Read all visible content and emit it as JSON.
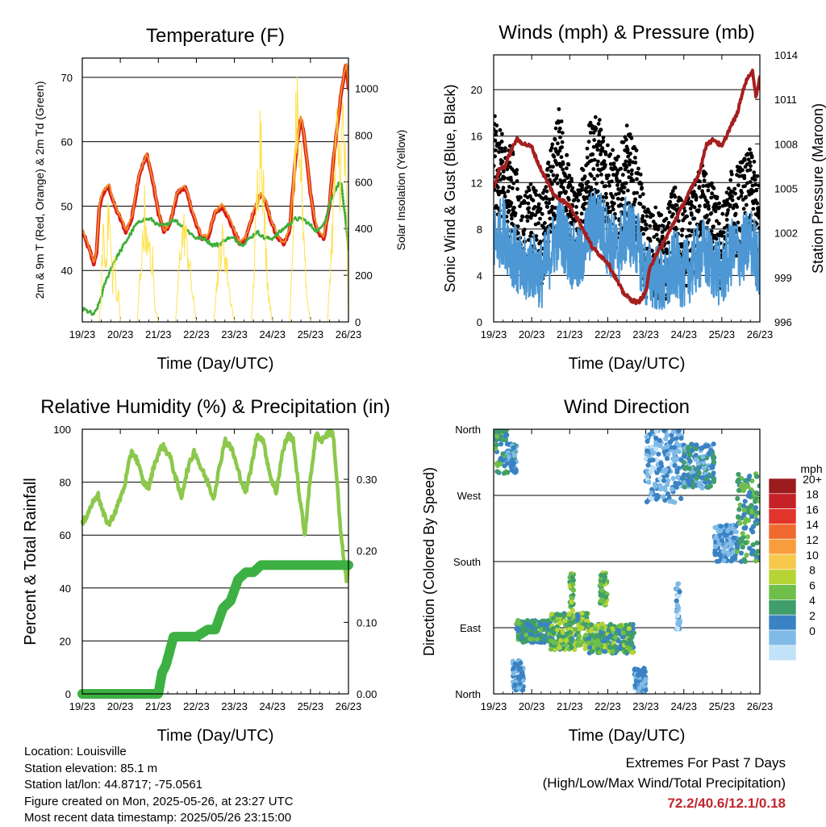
{
  "chart_data": [
    {
      "type": "line",
      "title": "Temperature (F)",
      "xlabel": "Time (Day/UTC)",
      "ylabel": "2m & 9m T (Red, Orange) & 2m Td (Green)",
      "y2label": "Solar Insolation (Yellow)",
      "x_ticks": [
        "19/23",
        "20/23",
        "21/23",
        "22/23",
        "23/23",
        "24/23",
        "25/23",
        "26/23"
      ],
      "x_range_days": [
        0,
        7
      ],
      "ylim": [
        32,
        73
      ],
      "y_ticks": [
        40,
        50,
        60,
        70
      ],
      "y2lim": [
        0,
        1130
      ],
      "y2_ticks": [
        0,
        200,
        400,
        600,
        800,
        1000
      ],
      "grid": true,
      "series": [
        {
          "axis": "left",
          "color": "#d7191c",
          "width": 4.5,
          "x": [
            0,
            0.2,
            0.3,
            0.38,
            0.45,
            0.55,
            0.7,
            0.85,
            1.0,
            1.15,
            1.3,
            1.5,
            1.7,
            1.85,
            2.0,
            2.15,
            2.3,
            2.5,
            2.7,
            2.85,
            3.0,
            3.15,
            3.3,
            3.5,
            3.7,
            3.85,
            4.0,
            4.15,
            4.3,
            4.5,
            4.7,
            4.85,
            5.0,
            5.15,
            5.3,
            5.45,
            5.6,
            5.75,
            5.85,
            6.0,
            6.1,
            6.2,
            6.35,
            6.5,
            6.6,
            6.7,
            6.8,
            6.9,
            6.95,
            7.0
          ],
          "y": [
            46,
            43,
            41,
            43,
            50,
            52,
            53,
            50,
            48,
            46,
            48,
            55,
            58,
            54,
            49,
            46,
            47,
            52,
            53,
            50,
            47,
            45,
            45,
            49,
            50,
            48,
            46,
            44,
            45,
            49,
            52,
            50,
            47,
            45,
            44,
            46,
            57,
            64,
            60,
            52,
            48,
            46,
            45,
            50,
            57,
            62,
            67,
            71,
            72,
            68
          ]
        },
        {
          "axis": "left",
          "color": "#f28c28",
          "width": 2,
          "x": [
            0,
            0.2,
            0.3,
            0.38,
            0.45,
            0.55,
            0.7,
            0.85,
            1.0,
            1.15,
            1.3,
            1.5,
            1.7,
            1.85,
            2.0,
            2.15,
            2.3,
            2.5,
            2.7,
            2.85,
            3.0,
            3.15,
            3.3,
            3.5,
            3.7,
            3.85,
            4.0,
            4.15,
            4.3,
            4.5,
            4.7,
            4.85,
            5.0,
            5.15,
            5.3,
            5.45,
            5.6,
            5.75,
            5.85,
            6.0,
            6.1,
            6.2,
            6.35,
            6.5,
            6.6,
            6.7,
            6.8,
            6.9,
            6.95,
            7.0
          ],
          "y": [
            46.3,
            43.3,
            41.3,
            43.3,
            50.3,
            52.3,
            53.4,
            50.3,
            48.3,
            46.3,
            48.3,
            55.3,
            58.2,
            54.3,
            49.3,
            46.3,
            47.3,
            52.3,
            53.2,
            50.3,
            47.3,
            45.3,
            45.3,
            49.3,
            50.3,
            48.3,
            46.3,
            44.3,
            45.3,
            49.3,
            52.3,
            50.3,
            47.3,
            45.3,
            44.3,
            46.3,
            57.3,
            64.2,
            60.2,
            52.3,
            48.3,
            46.3,
            45.3,
            50.3,
            57.2,
            62.2,
            67.2,
            71.2,
            72.2,
            68.2
          ]
        },
        {
          "axis": "left",
          "color": "#3fae3b",
          "width": 3,
          "dotted": true,
          "x": [
            0,
            0.2,
            0.3,
            0.45,
            0.6,
            0.8,
            1.0,
            1.2,
            1.4,
            1.6,
            1.8,
            2.0,
            2.2,
            2.4,
            2.6,
            2.8,
            3.0,
            3.2,
            3.4,
            3.6,
            3.8,
            4.0,
            4.2,
            4.4,
            4.6,
            4.8,
            5.0,
            5.2,
            5.4,
            5.6,
            5.8,
            6.0,
            6.2,
            6.4,
            6.6,
            6.8,
            6.9,
            7.0
          ],
          "y": [
            34,
            33.5,
            33,
            35,
            38,
            41,
            43,
            45,
            47,
            48,
            48,
            47,
            47,
            48,
            47,
            46,
            45,
            45,
            44,
            44,
            45,
            45,
            44,
            45,
            46,
            45,
            45,
            46,
            47,
            48,
            48,
            47,
            46,
            48,
            52,
            54,
            49,
            43
          ]
        },
        {
          "axis": "right",
          "color": "#fde24f",
          "width": 1,
          "x": [
            0,
            0.45,
            0.5,
            0.55,
            0.6,
            0.7,
            0.8,
            0.85,
            0.9,
            0.95,
            1.0,
            1.45,
            1.5,
            1.6,
            1.65,
            1.7,
            1.75,
            1.8,
            1.85,
            1.9,
            2.0,
            2.45,
            2.5,
            2.6,
            2.7,
            2.8,
            2.9,
            3.0,
            3.45,
            3.5,
            3.6,
            3.7,
            3.8,
            3.9,
            4.0,
            4.45,
            4.5,
            4.6,
            4.7,
            4.8,
            4.9,
            5.0,
            5.45,
            5.5,
            5.55,
            5.6,
            5.65,
            5.7,
            5.75,
            5.8,
            5.85,
            5.9,
            6.0,
            6.45,
            6.5,
            6.6,
            6.7,
            6.8,
            6.85,
            6.9,
            6.95,
            7.0
          ],
          "y": [
            0,
            0,
            150,
            550,
            300,
            600,
            200,
            400,
            100,
            200,
            0,
            0,
            200,
            450,
            650,
            300,
            500,
            250,
            350,
            100,
            0,
            0,
            150,
            450,
            500,
            350,
            150,
            0,
            0,
            120,
            350,
            450,
            300,
            120,
            0,
            0,
            200,
            700,
            1100,
            500,
            150,
            0,
            0,
            200,
            600,
            950,
            1100,
            700,
            900,
            600,
            400,
            150,
            0,
            0,
            200,
            600,
            1000,
            800,
            1130,
            900,
            600,
            0
          ]
        }
      ]
    },
    {
      "type": "scatter",
      "title": "Winds (mph) & Pressure (mb)",
      "xlabel": "Time (Day/UTC)",
      "ylabel": "Sonic Wind & Gust (Blue, Black)",
      "y2label": "Station Pressure (Maroon)",
      "x_ticks": [
        "19/23",
        "20/23",
        "21/23",
        "22/23",
        "23/23",
        "24/23",
        "25/23",
        "26/23"
      ],
      "x_range_days": [
        0,
        7
      ],
      "ylim": [
        0,
        23
      ],
      "y_ticks": [
        0,
        4,
        8,
        12,
        16,
        20
      ],
      "y2lim": [
        996,
        1014
      ],
      "y2_ticks": [
        996,
        999,
        1002,
        1005,
        1008,
        1011,
        1014
      ],
      "grid": true,
      "wind_envelope": {
        "x": [
          0,
          0.25,
          0.5,
          0.75,
          1.0,
          1.25,
          1.5,
          1.75,
          2.0,
          2.25,
          2.5,
          2.75,
          3.0,
          3.25,
          3.5,
          3.75,
          4.0,
          4.25,
          4.5,
          4.75,
          5.0,
          5.25,
          5.5,
          5.75,
          6.0,
          6.25,
          6.5,
          6.75,
          7.0
        ],
        "sustained_mean": [
          7,
          8,
          6,
          4,
          5,
          4,
          6,
          8,
          6,
          5,
          8,
          9,
          7,
          6,
          8,
          7,
          4,
          4,
          3,
          5,
          4,
          5,
          6,
          5,
          4,
          6,
          6,
          7,
          5
        ],
        "gust_mean": [
          14,
          12,
          11,
          7,
          8,
          7,
          11,
          15,
          9,
          8,
          13,
          14,
          12,
          10,
          13,
          11,
          6,
          6,
          5,
          8,
          6,
          8,
          10,
          8,
          6,
          9,
          10,
          11,
          8
        ]
      },
      "pressure": {
        "color": "#a51f1f",
        "x": [
          0,
          0.15,
          0.3,
          0.45,
          0.6,
          0.8,
          1.0,
          1.2,
          1.4,
          1.6,
          1.8,
          2.0,
          2.2,
          2.4,
          2.6,
          2.8,
          3.0,
          3.2,
          3.4,
          3.6,
          3.8,
          4.0,
          4.1,
          4.25,
          4.4,
          4.6,
          4.8,
          5.0,
          5.2,
          5.4,
          5.6,
          5.8,
          6.0,
          6.2,
          6.4,
          6.6,
          6.8,
          6.9,
          7.0
        ],
        "y": [
          1005,
          1006.3,
          1006.5,
          1007.5,
          1008.3,
          1008,
          1007.8,
          1006.5,
          1005.5,
          1004.5,
          1004.2,
          1003.8,
          1003,
          1002,
          1001,
          1000.5,
          1000,
          999,
          998,
          997.5,
          997.3,
          998,
          999.5,
          1000.5,
          1001,
          1002,
          1003,
          1004,
          1005,
          1006,
          1008,
          1008.3,
          1007.8,
          1009,
          1010,
          1012,
          1013,
          1011.2,
          1012.5
        ]
      }
    },
    {
      "type": "line",
      "title": "Relative Humidity (%) & Precipitation (in)",
      "xlabel": "Time (Day/UTC)",
      "ylabel": "Percent & Total Rainfall",
      "x_ticks": [
        "19/23",
        "20/23",
        "21/23",
        "22/23",
        "23/23",
        "24/23",
        "25/23",
        "26/23"
      ],
      "x_range_days": [
        0,
        7
      ],
      "ylim": [
        0,
        100
      ],
      "y_ticks": [
        0,
        20,
        40,
        60,
        80,
        100
      ],
      "y2lim": [
        0,
        0.37
      ],
      "y2_ticks": [
        "0.00",
        "0.10",
        "0.20",
        "0.30"
      ],
      "grid": true,
      "series": [
        {
          "axis": "left",
          "color": "#8cc84b",
          "width": 4.5,
          "x": [
            0,
            0.2,
            0.4,
            0.55,
            0.7,
            0.9,
            1.1,
            1.3,
            1.45,
            1.6,
            1.75,
            1.9,
            2.1,
            2.3,
            2.45,
            2.6,
            2.75,
            2.95,
            3.1,
            3.3,
            3.45,
            3.6,
            3.75,
            3.95,
            4.1,
            4.3,
            4.45,
            4.6,
            4.75,
            4.95,
            5.1,
            5.25,
            5.4,
            5.55,
            5.7,
            5.85,
            6.0,
            6.15,
            6.3,
            6.5,
            6.6,
            6.7,
            6.8,
            6.95,
            7.0
          ],
          "y": [
            64,
            70,
            76,
            68,
            64,
            70,
            78,
            92,
            88,
            80,
            78,
            87,
            94,
            90,
            82,
            74,
            84,
            92,
            86,
            80,
            74,
            85,
            96,
            92,
            84,
            76,
            86,
            98,
            96,
            82,
            76,
            90,
            98,
            96,
            76,
            60,
            82,
            98,
            96,
            99,
            98,
            80,
            60,
            42,
            50
          ]
        },
        {
          "axis": "right",
          "color": "#3cb043",
          "width": 12,
          "x": [
            0,
            0.5,
            1.0,
            1.5,
            2.0,
            2.1,
            2.2,
            2.3,
            2.4,
            2.5,
            2.7,
            3.0,
            3.3,
            3.5,
            3.7,
            3.9,
            4.1,
            4.3,
            4.5,
            4.7,
            5.0,
            5.5,
            6.0,
            6.5,
            7.0
          ],
          "y": [
            0,
            0,
            0,
            0,
            0,
            0.03,
            0.04,
            0.06,
            0.08,
            0.08,
            0.08,
            0.08,
            0.09,
            0.09,
            0.12,
            0.13,
            0.16,
            0.17,
            0.17,
            0.18,
            0.18,
            0.18,
            0.18,
            0.18,
            0.18
          ]
        }
      ]
    },
    {
      "type": "scatter",
      "title": "Wind Direction",
      "xlabel": "Time (Day/UTC)",
      "ylabel": "Direction (Colored By Speed)",
      "x_ticks": [
        "19/23",
        "20/23",
        "21/23",
        "22/23",
        "23/23",
        "24/23",
        "25/23",
        "26/23"
      ],
      "x_range_days": [
        0,
        7
      ],
      "ylim": [
        0,
        360
      ],
      "y_ticks": [
        "North",
        "East",
        "South",
        "West",
        "North"
      ],
      "grid": true,
      "colorbar": {
        "title": "mph",
        "labels": [
          "20+",
          "18",
          "16",
          "14",
          "12",
          "10",
          "8",
          "6",
          "4",
          "2",
          "0"
        ],
        "colors": [
          "#9b1b1e",
          "#c62127",
          "#e2342b",
          "#f06a2f",
          "#f89c3c",
          "#f6c94b",
          "#b7d435",
          "#6fbf4a",
          "#3f9e6a",
          "#3a82c4",
          "#7fbbe6",
          "#c2e3f7"
        ]
      },
      "clusters": [
        {
          "x": [
            0,
            0.35
          ],
          "dir": [
            345,
            360
          ],
          "speed": [
            5,
            9
          ],
          "alt_dir": [
            290,
            340
          ]
        },
        {
          "x": [
            0.35,
            0.6
          ],
          "dir": [
            300,
            340
          ],
          "speed": [
            3,
            7
          ]
        },
        {
          "x": [
            0.5,
            0.8
          ],
          "dir": [
            5,
            45
          ],
          "speed": [
            2,
            6
          ]
        },
        {
          "x": [
            0.6,
            1.5
          ],
          "dir": [
            70,
            100
          ],
          "speed": [
            4,
            9
          ]
        },
        {
          "x": [
            1.5,
            2.5
          ],
          "dir": [
            60,
            110
          ],
          "speed": [
            5,
            12
          ]
        },
        {
          "x": [
            2.0,
            2.1
          ],
          "dir": [
            110,
            170
          ],
          "speed": [
            6,
            11
          ]
        },
        {
          "x": [
            2.8,
            3.0
          ],
          "dir": [
            120,
            165
          ],
          "speed": [
            6,
            12
          ]
        },
        {
          "x": [
            2.5,
            3.7
          ],
          "dir": [
            55,
            95
          ],
          "speed": [
            5,
            11
          ]
        },
        {
          "x": [
            3.7,
            4.0
          ],
          "dir": [
            0,
            35
          ],
          "speed": [
            2,
            6
          ]
        },
        {
          "x": [
            4.0,
            5.0
          ],
          "dir": [
            260,
            360
          ],
          "speed": [
            1,
            6
          ]
        },
        {
          "x": [
            4.8,
            4.9
          ],
          "dir": [
            80,
            150
          ],
          "speed": [
            1,
            5
          ]
        },
        {
          "x": [
            5.0,
            5.8
          ],
          "dir": [
            280,
            340
          ],
          "speed": [
            3,
            8
          ]
        },
        {
          "x": [
            5.8,
            6.4
          ],
          "dir": [
            180,
            230
          ],
          "speed": [
            2,
            6
          ]
        },
        {
          "x": [
            6.4,
            7.0
          ],
          "dir": [
            180,
            300
          ],
          "speed": [
            4,
            10
          ]
        }
      ]
    }
  ],
  "info": {
    "location": "Location: Louisville",
    "elevation": "Station elevation: 85.1 m",
    "latlon": "Station lat/lon: 44.8717; -75.0561",
    "created": "Figure created on Mon, 2025-05-26, at 23:27 UTC",
    "recent": "Most recent data timestamp: 2025/05/26 23:15:00"
  },
  "extremes": {
    "title": "Extremes For Past 7 Days",
    "subtitle": "(High/Low/Max Wind/Total Precipitation)",
    "values": "72.2/40.6/12.1/0.18"
  }
}
